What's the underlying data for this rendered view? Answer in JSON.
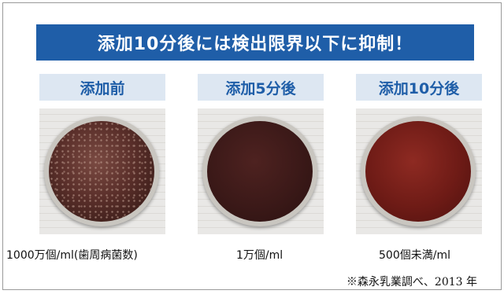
{
  "banner": {
    "text": "添加10分後には検出限界以下に抑制！",
    "color": "#1f5ea8"
  },
  "panels": [
    {
      "label": "添加前",
      "caption": "1000万個/ml(歯周病菌数)"
    },
    {
      "label": "添加5分後",
      "caption": "1万個/ml"
    },
    {
      "label": "添加10分後",
      "caption": "500個未満/ml"
    }
  ],
  "note": "※森永乳業調べ、2013 年"
}
